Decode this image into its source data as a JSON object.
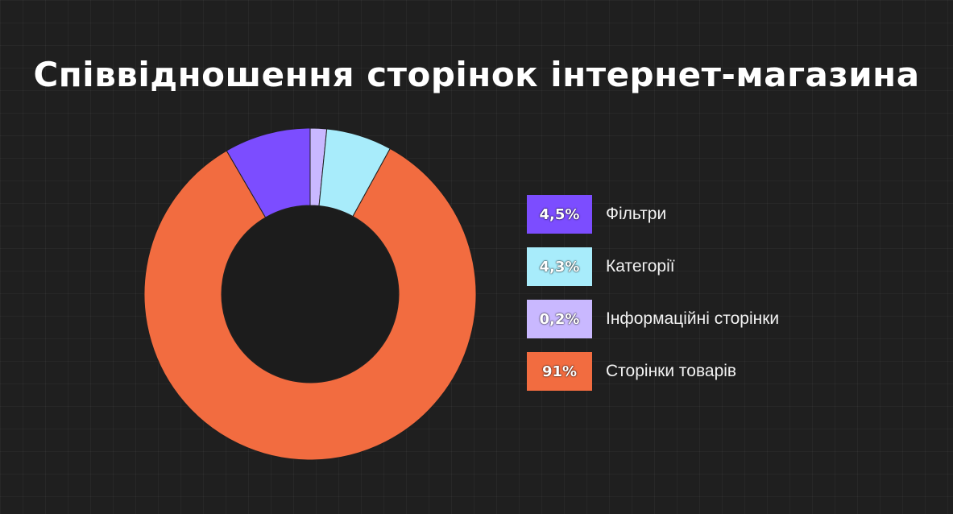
{
  "title": "Співвідношення сторінок інтернет-магазина",
  "chart_data": {
    "type": "pie",
    "title": "Співвідношення сторінок інтернет-магазина",
    "donut": true,
    "slices": [
      {
        "label": "Інформаційні сторінки",
        "value": 0.2,
        "display": "0,2%",
        "color": "#c9b8ff"
      },
      {
        "label": "Категорії",
        "value": 4.3,
        "display": "4,3%",
        "color": "#a8ecfb"
      },
      {
        "label": "Сторінки товарів",
        "value": 91,
        "display": "91%",
        "color": "#f26c40"
      },
      {
        "label": "Фільтри",
        "value": 4.5,
        "display": "4,5%",
        "color": "#7c4dff"
      }
    ],
    "legend": [
      {
        "label": "Фільтри",
        "display": "4,5%",
        "color": "#7c4dff"
      },
      {
        "label": "Категорії",
        "display": "4,3%",
        "color": "#a8ecfb"
      },
      {
        "label": "Інформаційні сторінки",
        "display": "0,2%",
        "color": "#c9b8ff"
      },
      {
        "label": "Сторінки товарів",
        "display": "91%",
        "color": "#f26c40"
      }
    ],
    "legend_position": "right"
  }
}
